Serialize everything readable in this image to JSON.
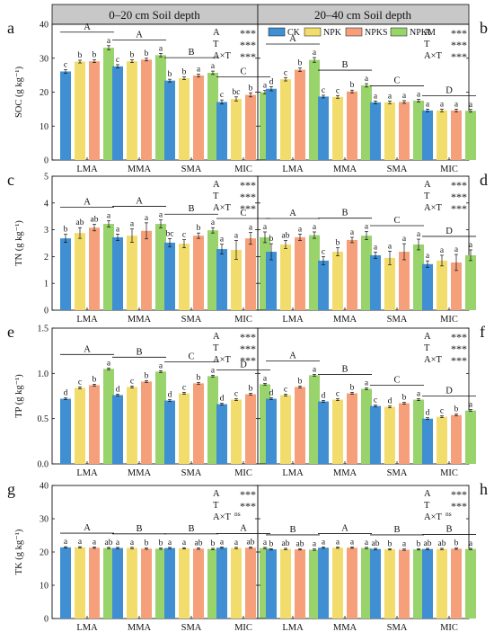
{
  "headers": [
    "0–20 cm Soil depth",
    "20–40 cm Soil depth"
  ],
  "legend": [
    "CK",
    "NPK",
    "NPKS",
    "NPKM"
  ],
  "colors": {
    "CK": "#3f8fd2",
    "NPK": "#f2dc6b",
    "NPKS": "#f5a07a",
    "NPKM": "#99d36b",
    "header_bg": "#c8c8c8",
    "ink": "#111111"
  },
  "chart_data": [
    {
      "type": "bar",
      "panel": "a",
      "depth": "0–20 cm Soil depth",
      "ylabel": "SOC (g kg⁻¹)",
      "ylim": [
        0,
        40
      ],
      "yticks": [
        0,
        10,
        20,
        30,
        40
      ],
      "categories": [
        "LMA",
        "MMA",
        "SMA",
        "MIC"
      ],
      "series": [
        {
          "name": "CK",
          "values": [
            26.1,
            27.6,
            23.4,
            17.1
          ],
          "err": [
            0.5,
            0.5,
            0.4,
            0.6
          ]
        },
        {
          "name": "NPK",
          "values": [
            29.0,
            29.1,
            24.1,
            18.0
          ],
          "err": [
            0.4,
            0.4,
            0.4,
            0.6
          ]
        },
        {
          "name": "NPKS",
          "values": [
            29.1,
            29.6,
            24.9,
            19.2
          ],
          "err": [
            0.4,
            0.4,
            0.4,
            0.6
          ]
        },
        {
          "name": "NPKM",
          "values": [
            33.1,
            30.9,
            25.7,
            20.0
          ],
          "err": [
            0.6,
            0.5,
            0.5,
            0.5
          ]
        }
      ],
      "letters": [
        [
          "c",
          "b",
          "b",
          "a"
        ],
        [
          "c",
          "b",
          "b",
          "a"
        ],
        [
          "b",
          "b",
          "a",
          "a"
        ],
        [
          "c",
          "bc",
          "b",
          "a"
        ]
      ],
      "groups": [
        "A",
        "A",
        "B",
        "C"
      ],
      "stats": [
        [
          "A",
          "***"
        ],
        [
          "T",
          "***"
        ],
        [
          "A×T",
          "***"
        ]
      ]
    },
    {
      "type": "bar",
      "panel": "b",
      "depth": "20–40 cm Soil depth",
      "ylabel": "SOC (g kg⁻¹)",
      "ylim": [
        0,
        40
      ],
      "yticks": [
        0,
        10,
        20,
        30,
        40
      ],
      "categories": [
        "LMA",
        "MMA",
        "SMA",
        "MIC"
      ],
      "series": [
        {
          "name": "CK",
          "values": [
            21.0,
            18.7,
            17.0,
            14.6
          ],
          "err": [
            0.6,
            0.4,
            0.4,
            0.4
          ]
        },
        {
          "name": "NPK",
          "values": [
            23.8,
            18.6,
            17.0,
            14.6
          ],
          "err": [
            0.5,
            0.4,
            0.4,
            0.4
          ]
        },
        {
          "name": "NPKS",
          "values": [
            26.6,
            20.2,
            17.1,
            14.6
          ],
          "err": [
            0.5,
            0.4,
            0.4,
            0.4
          ]
        },
        {
          "name": "NPKM",
          "values": [
            29.5,
            22.0,
            17.5,
            14.5
          ],
          "err": [
            0.7,
            0.5,
            0.4,
            0.4
          ]
        }
      ],
      "letters": [
        [
          "d",
          "c",
          "b",
          "a"
        ],
        [
          "c",
          "c",
          "b",
          "a"
        ],
        [
          "a",
          "a",
          "a",
          "a"
        ],
        [
          "a",
          "a",
          "a",
          "a"
        ]
      ],
      "groups": [
        "A",
        "B",
        "C",
        "D"
      ],
      "stats": [
        [
          "A",
          "***"
        ],
        [
          "T",
          "***"
        ],
        [
          "A×T",
          "***"
        ]
      ]
    },
    {
      "type": "bar",
      "panel": "c",
      "depth": "0–20 cm Soil depth",
      "ylabel": "TN (g kg⁻¹)",
      "ylim": [
        0,
        5
      ],
      "yticks": [
        0,
        1,
        2,
        3,
        4,
        5
      ],
      "categories": [
        "LMA",
        "MMA",
        "SMA",
        "MIC"
      ],
      "series": [
        {
          "name": "CK",
          "values": [
            2.68,
            2.72,
            2.52,
            2.28
          ],
          "err": [
            0.15,
            0.12,
            0.15,
            0.18
          ]
        },
        {
          "name": "NPK",
          "values": [
            2.88,
            2.78,
            2.48,
            2.25
          ],
          "err": [
            0.2,
            0.25,
            0.15,
            0.35
          ]
        },
        {
          "name": "NPKS",
          "values": [
            3.08,
            2.96,
            2.78,
            2.68
          ],
          "err": [
            0.12,
            0.3,
            0.1,
            0.22
          ]
        },
        {
          "name": "NPKM",
          "values": [
            3.22,
            3.22,
            2.98,
            2.72
          ],
          "err": [
            0.12,
            0.15,
            0.1,
            0.2
          ]
        }
      ],
      "letters": [
        [
          "b",
          "ab",
          "ab",
          "a"
        ],
        [
          "a",
          "a",
          "a",
          "a"
        ],
        [
          "bc",
          "c",
          "b",
          "a"
        ],
        [
          "a",
          "a",
          "a",
          "a"
        ]
      ],
      "groups": [
        "A",
        "A",
        "B",
        "C"
      ],
      "stats": [
        [
          "A",
          "***"
        ],
        [
          "T",
          "***"
        ],
        [
          "A×T",
          "***"
        ]
      ]
    },
    {
      "type": "bar",
      "panel": "d",
      "depth": "20–40 cm Soil depth",
      "ylabel": "TN (g kg⁻¹)",
      "ylim": [
        0,
        5
      ],
      "yticks": [
        0,
        1,
        2,
        3,
        4,
        5
      ],
      "categories": [
        "LMA",
        "MMA",
        "SMA",
        "MIC"
      ],
      "series": [
        {
          "name": "CK",
          "values": [
            2.18,
            1.85,
            2.05,
            1.72
          ],
          "err": [
            0.3,
            0.15,
            0.12,
            0.12
          ]
        },
        {
          "name": "NPK",
          "values": [
            2.45,
            2.18,
            1.95,
            1.85
          ],
          "err": [
            0.15,
            0.15,
            0.25,
            0.2
          ]
        },
        {
          "name": "NPKS",
          "values": [
            2.72,
            2.62,
            2.18,
            1.78
          ],
          "err": [
            0.12,
            0.1,
            0.3,
            0.3
          ]
        },
        {
          "name": "NPKM",
          "values": [
            2.8,
            2.78,
            2.45,
            2.05
          ],
          "err": [
            0.12,
            0.15,
            0.2,
            0.2
          ]
        }
      ],
      "letters": [
        [
          "b",
          "ab",
          "a",
          "a"
        ],
        [
          "c",
          "b",
          "a",
          "a"
        ],
        [
          "a",
          "a",
          "a",
          "a"
        ],
        [
          "a",
          "a",
          "a",
          "a"
        ]
      ],
      "groups": [
        "A",
        "B",
        "C",
        "D"
      ],
      "stats": [
        [
          "A",
          "***"
        ],
        [
          "T",
          "***"
        ],
        [
          "A×T",
          "***"
        ]
      ]
    },
    {
      "type": "bar",
      "panel": "e",
      "depth": "0–20 cm Soil depth",
      "ylabel": "TP (g kg⁻¹)",
      "ylim": [
        0,
        1.5
      ],
      "yticks": [
        0.0,
        0.5,
        1.0,
        1.5
      ],
      "categories": [
        "LMA",
        "MMA",
        "SMA",
        "MIC"
      ],
      "series": [
        {
          "name": "CK",
          "values": [
            0.72,
            0.76,
            0.7,
            0.66
          ],
          "err": [
            0.01,
            0.01,
            0.01,
            0.01
          ]
        },
        {
          "name": "NPK",
          "values": [
            0.84,
            0.85,
            0.78,
            0.71
          ],
          "err": [
            0.01,
            0.01,
            0.01,
            0.01
          ]
        },
        {
          "name": "NPKS",
          "values": [
            0.87,
            0.91,
            0.89,
            0.77
          ],
          "err": [
            0.01,
            0.01,
            0.01,
            0.01
          ]
        },
        {
          "name": "NPKM",
          "values": [
            1.05,
            1.02,
            0.97,
            0.88
          ],
          "err": [
            0.01,
            0.01,
            0.01,
            0.01
          ]
        }
      ],
      "letters": [
        [
          "d",
          "c",
          "b",
          "a"
        ],
        [
          "d",
          "c",
          "b",
          "a"
        ],
        [
          "d",
          "c",
          "b",
          "a"
        ],
        [
          "d",
          "c",
          "b",
          "a"
        ]
      ],
      "groups": [
        "A",
        "B",
        "C",
        "D"
      ],
      "stats": [
        [
          "A",
          "***"
        ],
        [
          "T",
          "***"
        ],
        [
          "A×T",
          "***"
        ]
      ]
    },
    {
      "type": "bar",
      "panel": "f",
      "depth": "20–40 cm Soil depth",
      "ylabel": "TP (g kg⁻¹)",
      "ylim": [
        0,
        1.5
      ],
      "yticks": [
        0.0,
        0.5,
        1.0,
        1.5
      ],
      "categories": [
        "LMA",
        "MMA",
        "SMA",
        "MIC"
      ],
      "series": [
        {
          "name": "CK",
          "values": [
            0.72,
            0.69,
            0.64,
            0.5
          ],
          "err": [
            0.01,
            0.01,
            0.01,
            0.01
          ]
        },
        {
          "name": "NPK",
          "values": [
            0.76,
            0.71,
            0.63,
            0.52
          ],
          "err": [
            0.01,
            0.01,
            0.01,
            0.01
          ]
        },
        {
          "name": "NPKS",
          "values": [
            0.85,
            0.78,
            0.67,
            0.54
          ],
          "err": [
            0.01,
            0.01,
            0.01,
            0.01
          ]
        },
        {
          "name": "NPKM",
          "values": [
            0.98,
            0.83,
            0.71,
            0.59
          ],
          "err": [
            0.01,
            0.01,
            0.01,
            0.01
          ]
        }
      ],
      "letters": [
        [
          "d",
          "c",
          "b",
          "a"
        ],
        [
          "d",
          "c",
          "b",
          "a"
        ],
        [
          "c",
          "d",
          "b",
          "a"
        ],
        [
          "d",
          "c",
          "b",
          "a"
        ]
      ],
      "groups": [
        "A",
        "B",
        "C",
        "D"
      ],
      "stats": [
        [
          "A",
          "***"
        ],
        [
          "T",
          "***"
        ],
        [
          "A×T",
          "***"
        ]
      ]
    },
    {
      "type": "bar",
      "panel": "g",
      "depth": "0–20 cm Soil depth",
      "ylabel": "TK (g kg⁻¹)",
      "ylim": [
        0,
        40
      ],
      "yticks": [
        0,
        10,
        20,
        30,
        40
      ],
      "categories": [
        "LMA",
        "MMA",
        "SMA",
        "MIC"
      ],
      "series": [
        {
          "name": "CK",
          "values": [
            21.4,
            21.2,
            21.2,
            21.3
          ],
          "err": [
            0.2,
            0.2,
            0.2,
            0.2
          ]
        },
        {
          "name": "NPK",
          "values": [
            21.4,
            21.2,
            21.1,
            21.2
          ],
          "err": [
            0.2,
            0.2,
            0.2,
            0.2
          ]
        },
        {
          "name": "NPKS",
          "values": [
            21.3,
            21.0,
            21.0,
            21.3
          ],
          "err": [
            0.2,
            0.2,
            0.2,
            0.2
          ]
        },
        {
          "name": "NPKM",
          "values": [
            21.2,
            21.0,
            20.9,
            21.2
          ],
          "err": [
            0.2,
            0.2,
            0.2,
            0.2
          ]
        }
      ],
      "letters": [
        [
          "a",
          "a",
          "a",
          "ab"
        ],
        [
          "a",
          "a",
          "b",
          "b"
        ],
        [
          "a",
          "a",
          "ab",
          "b"
        ],
        [
          "a",
          "a",
          "ab",
          "a"
        ]
      ],
      "groups": [
        "A",
        "B",
        "B",
        "A"
      ],
      "stats": [
        [
          "A",
          "***"
        ],
        [
          "T",
          "***"
        ],
        [
          "A×T",
          "ns"
        ]
      ]
    },
    {
      "type": "bar",
      "panel": "h",
      "depth": "20–40 cm Soil depth",
      "ylabel": "TK (g kg⁻¹)",
      "ylim": [
        0,
        40
      ],
      "yticks": [
        0,
        10,
        20,
        30,
        40
      ],
      "categories": [
        "LMA",
        "MMA",
        "SMA",
        "MIC"
      ],
      "series": [
        {
          "name": "CK",
          "values": [
            20.8,
            21.3,
            20.9,
            20.9
          ],
          "err": [
            0.2,
            0.2,
            0.2,
            0.2
          ]
        },
        {
          "name": "NPK",
          "values": [
            20.9,
            21.3,
            20.8,
            20.9
          ],
          "err": [
            0.2,
            0.2,
            0.2,
            0.2
          ]
        },
        {
          "name": "NPKS",
          "values": [
            20.8,
            21.3,
            20.7,
            21.0
          ],
          "err": [
            0.2,
            0.2,
            0.2,
            0.2
          ]
        },
        {
          "name": "NPKM",
          "values": [
            20.7,
            21.2,
            20.8,
            20.9
          ],
          "err": [
            0.2,
            0.2,
            0.2,
            0.2
          ]
        }
      ],
      "letters": [
        [
          "b",
          "ab",
          "ab",
          "a"
        ],
        [
          "a",
          "a",
          "a",
          "a"
        ],
        [
          "ab",
          "b",
          "a",
          "b"
        ],
        [
          "ab",
          "ab",
          "b",
          "a"
        ]
      ],
      "groups": [
        "B",
        "A",
        "B",
        "B"
      ],
      "stats": [
        [
          "A",
          "***"
        ],
        [
          "T",
          "***"
        ],
        [
          "A×T",
          "ns"
        ]
      ]
    }
  ]
}
